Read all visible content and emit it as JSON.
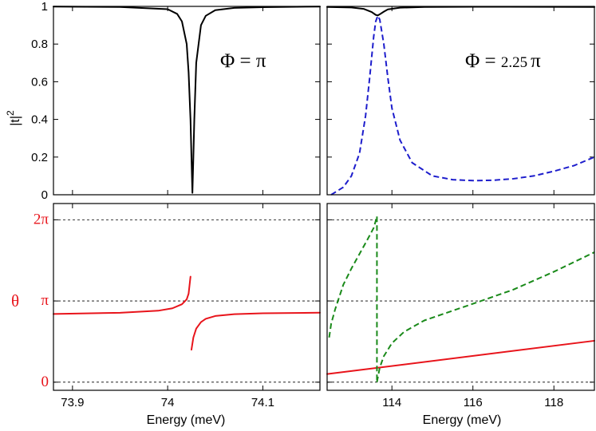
{
  "figure": {
    "top_left_annotation": "Φ = π",
    "top_right_annotation_prefix": "Φ = ",
    "top_right_annotation_value": "2.25",
    "top_right_annotation_suffix": "π",
    "top_ylabel_base": "|t|",
    "top_ylabel_exp": "2",
    "bottom_ylabel": "θ",
    "xlabel_left": "Energy (meV)",
    "xlabel_right": "Energy (meV)"
  },
  "colors": {
    "black": "#000000",
    "red": "#e8141b",
    "blue": "#1d1dcc",
    "green": "#1a8a1a",
    "phase_red": "#e8141b"
  },
  "chart_data": [
    {
      "id": "top_left",
      "type": "line",
      "xlim": [
        73.88,
        74.16
      ],
      "ylim": [
        0,
        1
      ],
      "yticks": [
        0,
        0.2,
        0.4,
        0.6,
        0.8,
        1
      ],
      "ytick_labels": [
        "0",
        "0.2",
        "0.4",
        "0.6",
        "0.8",
        "1"
      ],
      "xticks": [
        73.9,
        74.0,
        74.1
      ],
      "annotation": "Φ = π",
      "series": [
        {
          "style": "solid",
          "color": "#000000",
          "x": [
            73.88,
            73.95,
            74.0,
            74.01,
            74.015,
            74.02,
            74.022,
            74.024,
            74.025,
            74.026,
            74.027,
            74.028,
            74.03,
            74.035,
            74.04,
            74.05,
            74.07,
            74.1,
            74.16
          ],
          "y": [
            0.999,
            0.997,
            0.985,
            0.96,
            0.92,
            0.8,
            0.65,
            0.4,
            0.2,
            0.01,
            0.2,
            0.4,
            0.7,
            0.9,
            0.95,
            0.98,
            0.992,
            0.996,
            0.999
          ]
        }
      ]
    },
    {
      "id": "top_right",
      "type": "line",
      "xlim": [
        112.4,
        119.0
      ],
      "ylim": [
        0,
        1
      ],
      "yticks": [
        0,
        0.2,
        0.4,
        0.6,
        0.8,
        1
      ],
      "xticks": [
        114,
        116,
        118
      ],
      "annotation": "Φ = 2.25 π",
      "series": [
        {
          "style": "solid",
          "color": "#000000",
          "x": [
            112.4,
            113.0,
            113.3,
            113.5,
            113.6,
            113.65,
            113.7,
            113.8,
            113.9,
            114.2,
            114.8,
            116.0,
            119.0
          ],
          "y": [
            0.997,
            0.994,
            0.987,
            0.97,
            0.955,
            0.952,
            0.958,
            0.972,
            0.984,
            0.993,
            0.997,
            0.998,
            0.997
          ]
        },
        {
          "style": "dashed",
          "color": "#1d1dcc",
          "x": [
            112.5,
            112.8,
            113.0,
            113.2,
            113.35,
            113.45,
            113.55,
            113.6,
            113.65,
            113.7,
            113.8,
            113.9,
            114.0,
            114.2,
            114.5,
            115.0,
            115.5,
            116.0,
            116.5,
            117.0,
            117.5,
            118.0,
            118.5,
            119.0
          ],
          "y": [
            0.0,
            0.04,
            0.1,
            0.22,
            0.42,
            0.62,
            0.84,
            0.92,
            0.95,
            0.93,
            0.8,
            0.62,
            0.46,
            0.29,
            0.17,
            0.1,
            0.08,
            0.075,
            0.077,
            0.085,
            0.1,
            0.125,
            0.155,
            0.2
          ]
        }
      ]
    },
    {
      "id": "bottom_left",
      "type": "line",
      "xlim": [
        73.88,
        74.16
      ],
      "ylim": [
        -0.1,
        2.2
      ],
      "yticks": [
        0,
        1,
        2
      ],
      "ytick_labels": [
        "0",
        "π",
        "2π"
      ],
      "ylabel": "θ",
      "xticks": [
        73.9,
        74.0,
        74.1
      ],
      "xtick_labels": [
        "73.9",
        "74",
        "74.1"
      ],
      "xlabel": "Energy (meV)",
      "hlines": [
        0,
        1,
        2
      ],
      "series": [
        {
          "style": "solid",
          "color": "#e8141b",
          "segments": [
            {
              "x": [
                73.88,
                73.95,
                73.99,
                74.005,
                74.015,
                74.02,
                74.022,
                74.024
              ],
              "y": [
                0.84,
                0.855,
                0.88,
                0.91,
                0.96,
                1.02,
                1.09,
                1.3
              ]
            },
            {
              "x": [
                74.025,
                74.027,
                74.03,
                74.035,
                74.04,
                74.05,
                74.07,
                74.1,
                74.16
              ],
              "y": [
                0.4,
                0.55,
                0.66,
                0.74,
                0.78,
                0.815,
                0.838,
                0.848,
                0.856
              ]
            }
          ]
        }
      ]
    },
    {
      "id": "bottom_right",
      "type": "line",
      "xlim": [
        112.4,
        119.0
      ],
      "ylim": [
        -0.1,
        2.2
      ],
      "yticks": [
        0,
        1,
        2
      ],
      "xticks": [
        114,
        116,
        118
      ],
      "xtick_labels": [
        "114",
        "116",
        "118"
      ],
      "xlabel": "Energy (meV)",
      "hlines": [
        0,
        1,
        2
      ],
      "series": [
        {
          "style": "solid",
          "color": "#e8141b",
          "x": [
            112.4,
            119.0
          ],
          "y": [
            0.1,
            0.51
          ]
        },
        {
          "style": "dashed",
          "color": "#1a8a1a",
          "segments": [
            {
              "x": [
                112.45,
                112.5,
                112.6,
                112.8,
                113.0,
                113.2,
                113.4,
                113.55,
                113.63
              ],
              "y": [
                0.55,
                0.72,
                0.9,
                1.2,
                1.4,
                1.58,
                1.76,
                1.9,
                2.04
              ]
            },
            {
              "x": [
                113.63,
                113.63
              ],
              "y": [
                2.04,
                0.0
              ]
            },
            {
              "x": [
                113.63,
                113.7,
                113.8,
                114.0,
                114.3,
                114.8,
                115.5,
                116.2,
                117.0,
                118.0,
                119.0
              ],
              "y": [
                0.0,
                0.18,
                0.32,
                0.48,
                0.62,
                0.76,
                0.88,
                1.0,
                1.14,
                1.36,
                1.6
              ]
            }
          ]
        }
      ]
    }
  ]
}
